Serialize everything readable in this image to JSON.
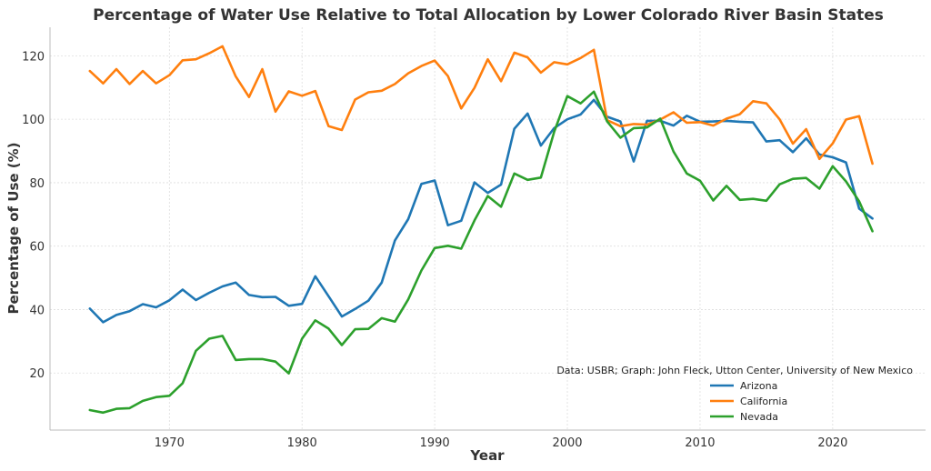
{
  "chart_data": {
    "type": "line",
    "title": "Percentage of Water Use Relative to Total Allocation by Lower Colorado River Basin States",
    "xlabel": "Year",
    "ylabel": "Percentage of Use (%)",
    "xlim": [
      1961,
      2027
    ],
    "ylim": [
      2,
      129
    ],
    "x_ticks": [
      1970,
      1980,
      1990,
      2000,
      2010,
      2020
    ],
    "y_ticks": [
      20,
      40,
      60,
      80,
      100,
      120
    ],
    "grid": true,
    "legend_position": "bottom-right",
    "annotation": "Data: USBR; Graph: John Fleck, Utton Center, University of New Mexico",
    "x": [
      1964,
      1965,
      1966,
      1967,
      1968,
      1969,
      1970,
      1971,
      1972,
      1973,
      1974,
      1975,
      1976,
      1977,
      1978,
      1979,
      1980,
      1981,
      1982,
      1983,
      1984,
      1985,
      1986,
      1987,
      1988,
      1989,
      1990,
      1991,
      1992,
      1993,
      1994,
      1995,
      1996,
      1997,
      1998,
      1999,
      2000,
      2001,
      2002,
      2003,
      2004,
      2005,
      2006,
      2007,
      2008,
      2009,
      2010,
      2011,
      2012,
      2013,
      2014,
      2015,
      2016,
      2017,
      2018,
      2019,
      2020,
      2021,
      2022,
      2023
    ],
    "series": [
      {
        "name": "Arizona",
        "color": "#1f77b4",
        "values": [
          40.3,
          36.0,
          38.3,
          39.5,
          41.7,
          40.7,
          42.9,
          46.3,
          43.0,
          45.3,
          47.3,
          48.5,
          44.6,
          43.9,
          44.0,
          41.2,
          41.8,
          50.5,
          44.2,
          37.8,
          40.2,
          42.8,
          48.5,
          61.8,
          68.5,
          79.6,
          80.7,
          66.6,
          68.0,
          80.1,
          76.8,
          79.4,
          97.0,
          101.8,
          91.7,
          97.2,
          100.0,
          101.5,
          106.1,
          100.8,
          99.3,
          86.7,
          99.5,
          99.5,
          98.0,
          101.1,
          99.2,
          99.3,
          99.5,
          99.2,
          99.0,
          93.0,
          93.4,
          89.6,
          94.0,
          88.9,
          88.0,
          86.4,
          71.8,
          68.7
        ]
      },
      {
        "name": "California",
        "color": "#ff7f0e",
        "values": [
          115.2,
          111.3,
          115.8,
          111.1,
          115.2,
          111.3,
          113.9,
          118.6,
          118.9,
          120.8,
          123.0,
          113.5,
          107.0,
          115.8,
          102.4,
          108.8,
          107.4,
          108.9,
          97.8,
          96.6,
          106.2,
          108.5,
          109.0,
          111.1,
          114.5,
          116.8,
          118.5,
          113.6,
          103.4,
          109.9,
          118.9,
          112.0,
          121.0,
          119.5,
          114.7,
          118.0,
          117.3,
          119.3,
          121.9,
          99.7,
          97.8,
          98.5,
          98.3,
          99.9,
          102.2,
          98.9,
          99.1,
          98.0,
          100.2,
          101.6,
          105.7,
          105.0,
          100.0,
          92.3,
          96.9,
          87.5,
          92.4,
          99.9,
          101.0,
          86.0
        ]
      },
      {
        "name": "Nevada",
        "color": "#2ca02c",
        "values": [
          8.3,
          7.5,
          8.7,
          8.9,
          11.2,
          12.4,
          12.8,
          16.8,
          27.0,
          30.8,
          31.7,
          24.1,
          24.4,
          24.4,
          23.6,
          19.9,
          30.8,
          36.6,
          34.0,
          28.8,
          33.8,
          33.9,
          37.3,
          36.2,
          43.2,
          52.3,
          59.4,
          60.1,
          59.2,
          68.1,
          75.8,
          72.4,
          82.9,
          80.9,
          81.6,
          96.0,
          107.3,
          105.0,
          108.7,
          99.3,
          94.2,
          97.2,
          97.4,
          100.2,
          89.8,
          82.9,
          80.6,
          74.4,
          79.0,
          74.6,
          74.9,
          74.3,
          79.5,
          81.2,
          81.5,
          78.1,
          85.2,
          80.4,
          74.1,
          64.7
        ]
      }
    ]
  }
}
